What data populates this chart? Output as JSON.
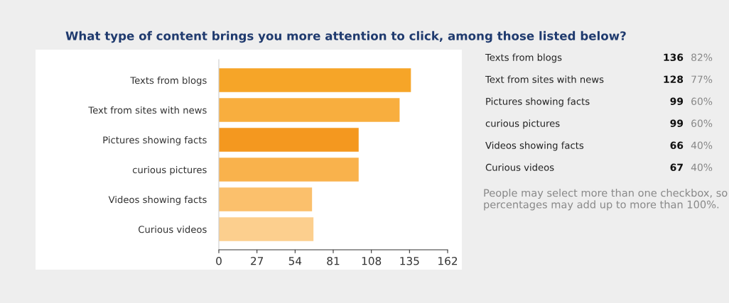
{
  "chart_data": {
    "type": "bar",
    "orientation": "horizontal",
    "title": "What type of content brings you more attention to click, among those listed below?",
    "categories": [
      "Texts from blogs",
      "Text from sites with news",
      "Pictures showing facts",
      "curious pictures",
      "Videos showing facts",
      "Curious videos"
    ],
    "values": [
      136,
      128,
      99,
      99,
      66,
      67
    ],
    "colors": [
      "#f6a528",
      "#f8ae3e",
      "#f4981f",
      "#f9b24c",
      "#fbc06c",
      "#fccf8e"
    ],
    "xlim": [
      0,
      162
    ],
    "xticks": [
      0,
      27,
      54,
      81,
      108,
      135,
      162
    ],
    "grid": false,
    "annotations": [
      "136",
      "128",
      "99",
      "99",
      "66",
      "67",
      "82%",
      "77%",
      "60%",
      "60%",
      "40%",
      "40%",
      "People may select more than one checkbox, so percentages may add up to more than 100%."
    ]
  }
}
